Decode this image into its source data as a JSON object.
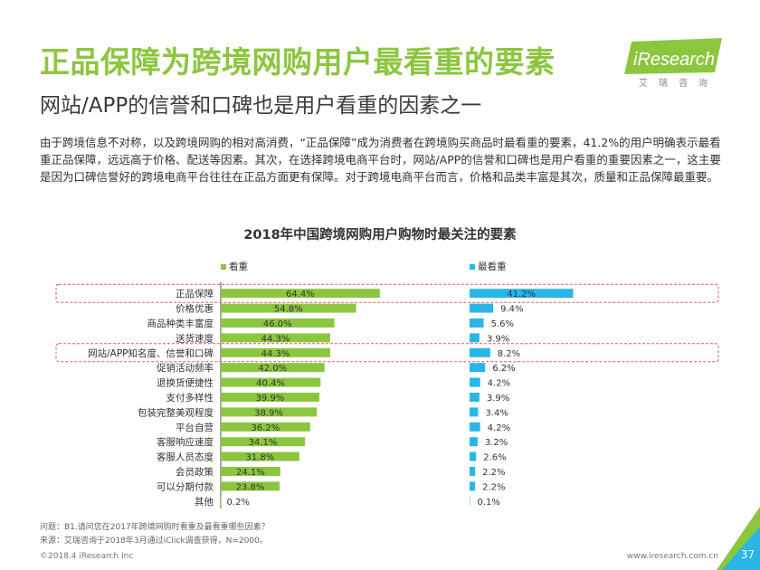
{
  "header": {
    "title": "正品保障为跨境网购用户最看重的要素",
    "subtitle": "网站/APP的信誉和口碑也是用户看重的因素之一",
    "logo_text": "iResearch",
    "logo_subtext": "艾瑞咨询"
  },
  "description": "由于跨境信息不对称，以及跨境网购的相对高消费，“正品保障”成为消费者在跨境购买商品时最看重的要素，41.2%的用户明确表示最看重正品保障，远远高于价格、配送等因素。其次，在选择跨境电商平台时，网站/APP的信誉和口碑也是用户看重的重要因素之一，这主要是因为口碑信誉好的跨境电商平台往往在正品方面更有保障。对于跨境电商平台而言，价格和品类丰富是其次，质量和正品保障最重要。",
  "chart_data": {
    "type": "bar",
    "title": "2018年中国跨境网购用户购物时最关注的要素",
    "categories": [
      "正品保障",
      "价格优惠",
      "商品种类丰富度",
      "送货速度",
      "网站/APP知名度、信誉和口碑",
      "促销活动频率",
      "退换货便捷性",
      "支付多样性",
      "包装完整美观程度",
      "平台自营",
      "客服响应速度",
      "客服人员态度",
      "会员政策",
      "可以分期付款",
      "其他"
    ],
    "series": [
      {
        "name": "看重",
        "color": "#8cc63f",
        "values": [
          64.4,
          54.8,
          46.0,
          44.3,
          44.3,
          42.0,
          40.4,
          39.9,
          38.9,
          36.2,
          34.1,
          31.8,
          24.1,
          23.8,
          0.2
        ]
      },
      {
        "name": "最看重",
        "color": "#29b6e6",
        "values": [
          41.2,
          9.4,
          5.6,
          3.9,
          8.2,
          6.2,
          4.2,
          3.9,
          3.4,
          4.2,
          3.2,
          2.6,
          2.2,
          2.2,
          0.1
        ]
      }
    ],
    "value_labels": {
      "series1": [
        "64.4%",
        "54.8%",
        "46.0%",
        "44.3%",
        "44.3%",
        "42.0%",
        "40.4%",
        "39.9%",
        "38.9%",
        "36.2%",
        "34.1%",
        "31.8%",
        "24.1%",
        "23.8%",
        "0.2%"
      ],
      "series2": [
        "41.2%",
        "9.4%",
        "5.6%",
        "3.9%",
        "8.2%",
        "6.2%",
        "4.2%",
        "3.9%",
        "3.4%",
        "4.2%",
        "3.2%",
        "2.6%",
        "2.2%",
        "2.2%",
        "0.1%"
      ]
    },
    "highlighted_categories": [
      "正品保障",
      "网站/APP知名度、信誉和口碑"
    ],
    "highlight_color": "#e05a5a",
    "grid": false,
    "legend_position": "top"
  },
  "footer": {
    "question": "问题：B1.请问您在2017年跨境网购时看重及最看重哪些因素？",
    "source": "来源：艾瑞咨询于2018年3月通过iClick调查获得，N=2000。",
    "copyright": "©2018.4 iResearch Inc",
    "website": "www.iresearch.com.cn",
    "page_number": "37"
  },
  "colors": {
    "title_green": "#8cc63f",
    "bar_green": "#8cc63f",
    "bar_blue": "#29b6e6",
    "highlight_red": "#e05a5a"
  }
}
